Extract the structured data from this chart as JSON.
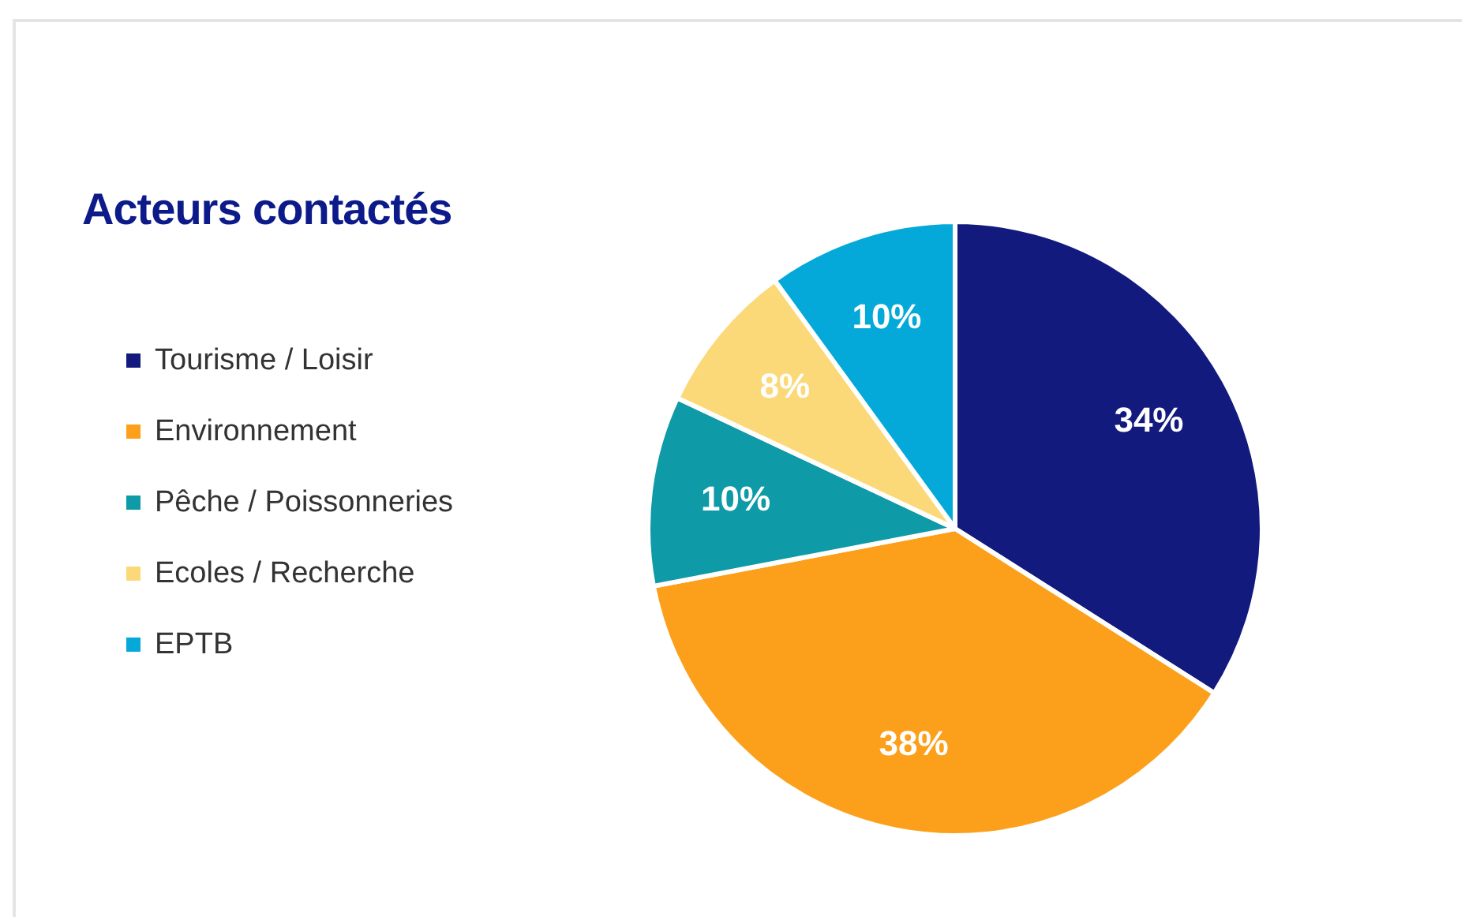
{
  "chart_data": {
    "type": "pie",
    "title": "Acteurs contactés",
    "categories": [
      "Tourisme / Loisir",
      "Environnement",
      "Pêche / Poissonneries",
      "Ecoles / Recherche",
      "EPTB"
    ],
    "values": [
      34,
      38,
      10,
      8,
      10
    ],
    "colors": [
      "#121a7e",
      "#fca01c",
      "#0e9aa7",
      "#fbd979",
      "#05a9d9"
    ],
    "value_labels": [
      "34%",
      "38%",
      "10%",
      "8%",
      "10%"
    ],
    "legend": "left"
  }
}
